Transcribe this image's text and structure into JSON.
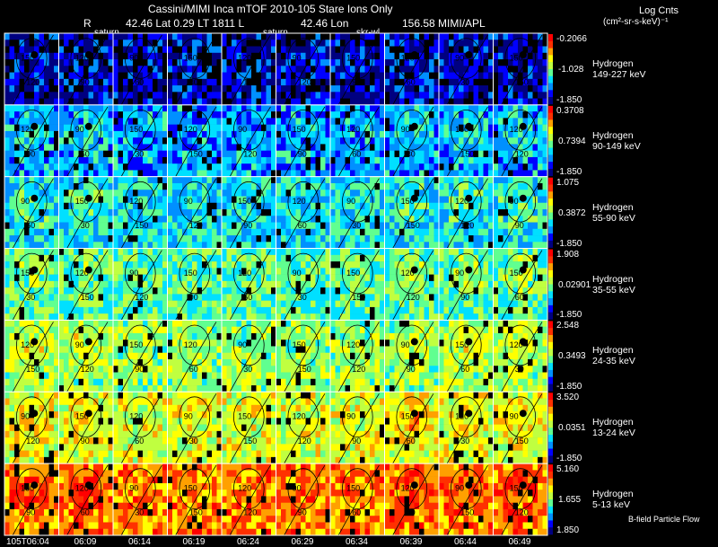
{
  "header": {
    "title": "Cassini/MIMI Inca mTOF  2010-105   Stare    Ions Only",
    "row2_r": "R",
    "row2_lat": "42.46 Lat 0.29 LT 1811 L",
    "row2_lon": "42.46 Lon",
    "row2_val": "156.58  MIMI/APL",
    "tag1": "saturn",
    "tag2": "saturn",
    "tag3": "skr-wl",
    "units_title": "Log Cnts",
    "units_sub": "(cm²-sr-s-keV)⁻¹"
  },
  "footer": {
    "bfield_note": "B-field Particle Flow"
  },
  "colors": {
    "scale": [
      "#000080",
      "#0000ff",
      "#0090ff",
      "#00e0ff",
      "#60ff90",
      "#c0ff40",
      "#ffff00",
      "#ffa000",
      "#ff3000",
      "#ff0000"
    ]
  },
  "chart_data": {
    "type": "heatmap",
    "title": "Cassini/MIMI Inca mTOF  2010-105   Stare    Ions Only",
    "species": "Hydrogen",
    "times": [
      "105T06:04",
      "06:09",
      "06:14",
      "06:19",
      "06:24",
      "06:29",
      "06:34",
      "06:39",
      "06:44",
      "06:49"
    ],
    "contour_labels": [
      "150",
      "120",
      "90",
      "60",
      "30"
    ],
    "rows": [
      {
        "energy": "149-227 keV",
        "species": "Hydrogen",
        "scale_max": "-0.2066",
        "scale_mid": "-1.028",
        "scale_min": "-1.850",
        "level": 0.12
      },
      {
        "energy": "90-149 keV",
        "species": "Hydrogen",
        "scale_max": "0.3708",
        "scale_mid": "0.7394",
        "scale_min": "-1.850",
        "level": 0.28
      },
      {
        "energy": "55-90 keV",
        "species": "Hydrogen",
        "scale_max": "1.075",
        "scale_mid": "0.3872",
        "scale_min": "-1.850",
        "level": 0.36
      },
      {
        "energy": "35-55 keV",
        "species": "Hydrogen",
        "scale_max": "1.908",
        "scale_mid": "0.02901",
        "scale_min": "-1.850",
        "level": 0.44
      },
      {
        "energy": "24-35 keV",
        "species": "Hydrogen",
        "scale_max": "2.548",
        "scale_mid": "0.3493",
        "scale_min": "-1.850",
        "level": 0.52
      },
      {
        "energy": "13-24 keV",
        "species": "Hydrogen",
        "scale_max": "3.520",
        "scale_mid": "0.0351",
        "scale_min": "-1.850",
        "level": 0.6
      },
      {
        "energy": "5-13 keV",
        "species": "Hydrogen",
        "scale_max": "5.160",
        "scale_mid": "1.655",
        "scale_min": "1.850",
        "level": 0.78
      }
    ]
  }
}
